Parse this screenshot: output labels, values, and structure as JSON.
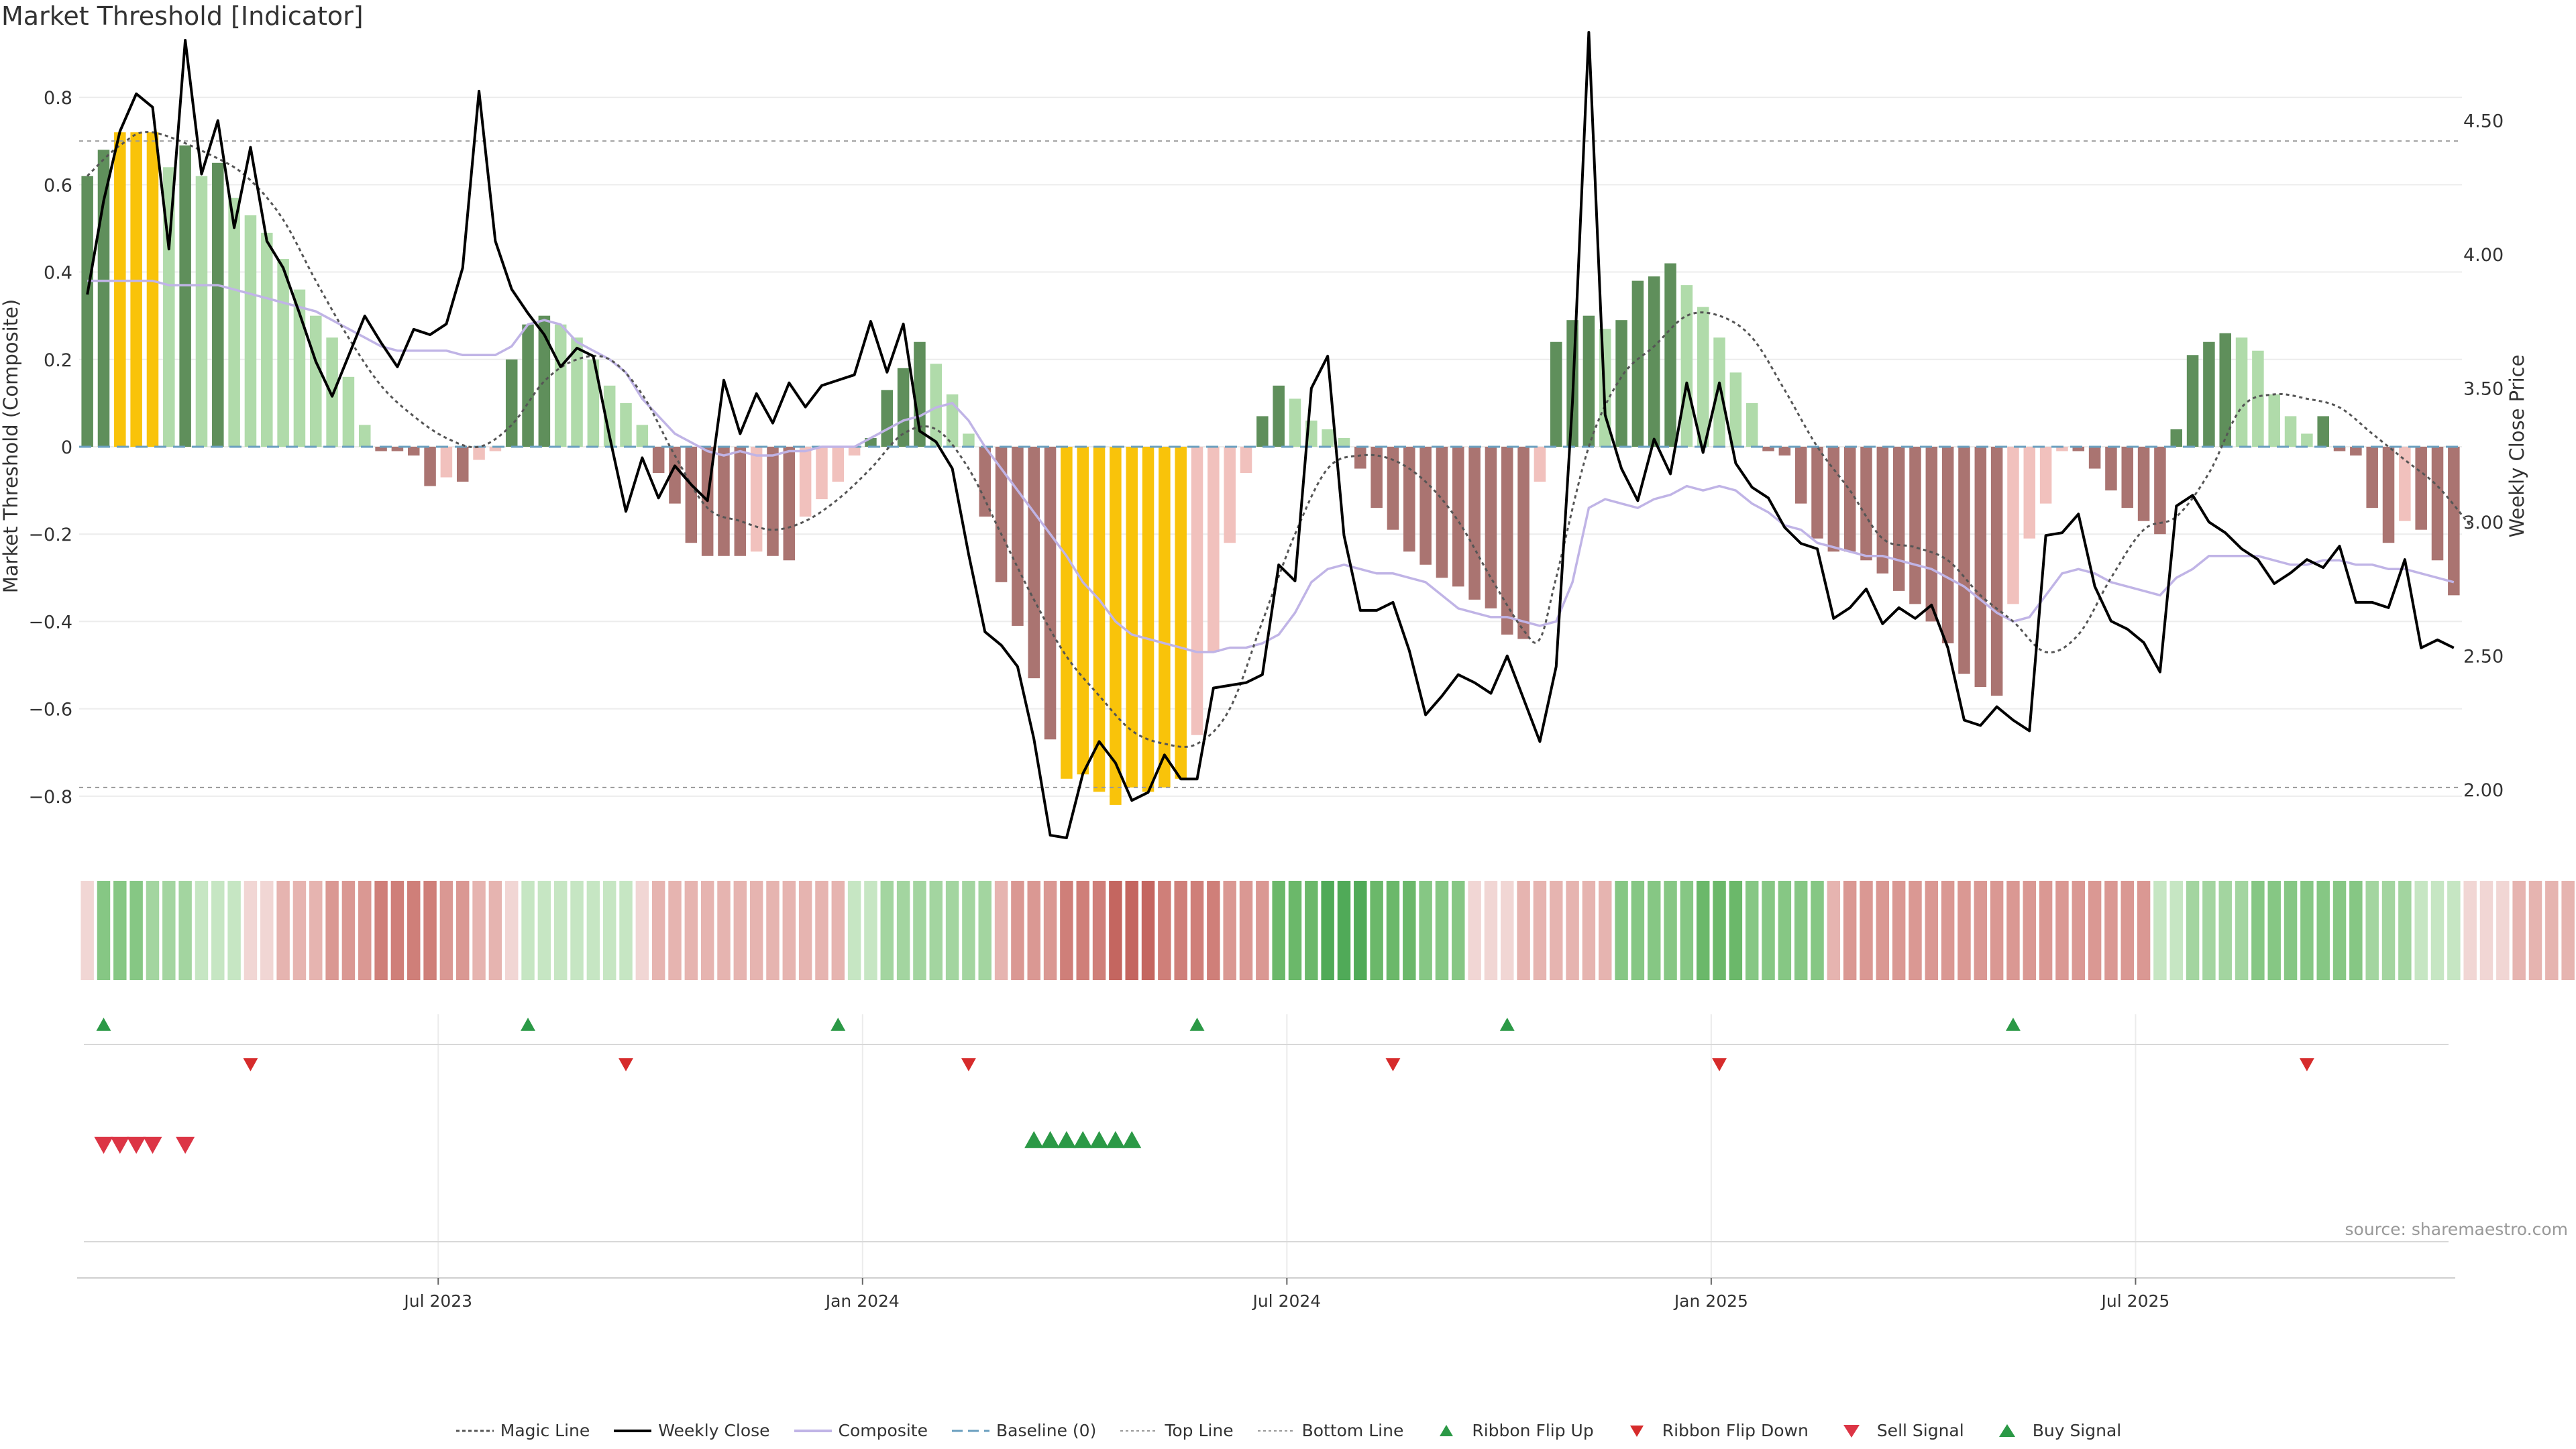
{
  "chart_data": {
    "type": "bar",
    "title": "Market Threshold [Indicator]",
    "ylabel_left": "Market Threshold (Composite)",
    "ylabel_right": "Weekly Close Price",
    "ylim_left": [
      -0.92,
      0.9
    ],
    "ylim_right": [
      1.78,
      4.75
    ],
    "yticks_left": [
      0.8,
      0.6,
      0.4,
      0.2,
      0,
      -0.2,
      -0.4,
      -0.6,
      -0.8
    ],
    "yticks_left_labels": [
      "0.8",
      "0.6",
      "0.4",
      "0.2",
      "0",
      "−0.2",
      "−0.4",
      "−0.6",
      "−0.8"
    ],
    "yticks_right": [
      4.5,
      4.0,
      3.5,
      3.0,
      2.5,
      2.0
    ],
    "yticks_right_labels": [
      "4.50",
      "4.00",
      "3.50",
      "3.00",
      "2.50",
      "2.00"
    ],
    "x_ticks": [
      "Jul 2023",
      "Jan 2024",
      "Jul 2024",
      "Jan 2025",
      "Jul 2025"
    ],
    "x_tick_positions": [
      22,
      48,
      74,
      100,
      126
    ],
    "top_line": 0.7,
    "bottom_line": -0.78,
    "baseline": 0,
    "composite": [
      0.62,
      0.68,
      0.72,
      0.72,
      0.72,
      0.64,
      0.69,
      0.62,
      0.65,
      0.57,
      0.53,
      0.49,
      0.43,
      0.36,
      0.3,
      0.25,
      0.16,
      0.05,
      -0.01,
      -0.01,
      -0.02,
      -0.09,
      -0.07,
      -0.08,
      -0.03,
      -0.01,
      0.2,
      0.28,
      0.3,
      0.28,
      0.25,
      0.2,
      0.14,
      0.1,
      0.05,
      -0.06,
      -0.13,
      -0.22,
      -0.25,
      -0.25,
      -0.25,
      -0.24,
      -0.25,
      -0.26,
      -0.16,
      -0.12,
      -0.08,
      -0.02,
      0.02,
      0.13,
      0.18,
      0.24,
      0.19,
      0.12,
      0.03,
      -0.16,
      -0.31,
      -0.41,
      -0.53,
      -0.67,
      -0.76,
      -0.75,
      -0.79,
      -0.82,
      -0.78,
      -0.79,
      -0.78,
      -0.76,
      -0.66,
      -0.47,
      -0.22,
      -0.06,
      0.07,
      0.14,
      0.11,
      0.06,
      0.04,
      0.02,
      -0.05,
      -0.14,
      -0.19,
      -0.24,
      -0.27,
      -0.3,
      -0.32,
      -0.35,
      -0.37,
      -0.43,
      -0.44,
      -0.08,
      0.24,
      0.29,
      0.3,
      0.27,
      0.29,
      0.38,
      0.39,
      0.42,
      0.37,
      0.32,
      0.25,
      0.17,
      0.1,
      -0.01,
      -0.02,
      -0.13,
      -0.21,
      -0.24,
      -0.24,
      -0.26,
      -0.29,
      -0.33,
      -0.36,
      -0.4,
      -0.45,
      -0.52,
      -0.55,
      -0.57,
      -0.36,
      -0.21,
      -0.13,
      -0.01,
      -0.01,
      -0.05,
      -0.1,
      -0.14,
      -0.17,
      -0.2,
      0.04,
      0.21,
      0.24,
      0.26,
      0.25,
      0.22,
      0.12,
      0.07,
      0.03,
      0.07,
      -0.01,
      -0.02,
      -0.14,
      -0.22,
      -0.17,
      -0.19,
      -0.26,
      -0.34
    ],
    "weekly_close": [
      3.85,
      4.2,
      4.46,
      4.6,
      4.55,
      4.02,
      4.8,
      4.3,
      4.5,
      4.1,
      4.4,
      4.05,
      3.95,
      3.78,
      3.6,
      3.47,
      3.62,
      3.77,
      3.67,
      3.58,
      3.72,
      3.7,
      3.74,
      3.95,
      4.61,
      4.05,
      3.87,
      3.78,
      3.7,
      3.58,
      3.65,
      3.62,
      3.32,
      3.04,
      3.24,
      3.09,
      3.21,
      3.14,
      3.08,
      3.53,
      3.33,
      3.48,
      3.37,
      3.52,
      3.43,
      3.51,
      3.53,
      3.55,
      3.75,
      3.56,
      3.74,
      3.34,
      3.3,
      3.2,
      2.88,
      2.59,
      2.54,
      2.46,
      2.19,
      1.83,
      1.82,
      2.06,
      2.18,
      2.1,
      1.96,
      1.99,
      2.13,
      2.04,
      2.04,
      2.38,
      2.39,
      2.4,
      2.43,
      2.84,
      2.78,
      3.5,
      3.62,
      2.95,
      2.67,
      2.67,
      2.7,
      2.52,
      2.28,
      2.35,
      2.43,
      2.4,
      2.36,
      2.5,
      2.34,
      2.18,
      2.46,
      3.45,
      4.83,
      3.4,
      3.2,
      3.08,
      3.31,
      3.18,
      3.52,
      3.26,
      3.52,
      3.22,
      3.13,
      3.09,
      2.98,
      2.92,
      2.9,
      2.64,
      2.68,
      2.75,
      2.62,
      2.68,
      2.64,
      2.69,
      2.53,
      2.26,
      2.24,
      2.31,
      2.26,
      2.22,
      2.95,
      2.96,
      3.03,
      2.76,
      2.63,
      2.6,
      2.55,
      2.44,
      3.06,
      3.1,
      3.0,
      2.96,
      2.9,
      2.86,
      2.77,
      2.81,
      2.86,
      2.83,
      2.91,
      2.7,
      2.7,
      2.68,
      2.86,
      2.53,
      2.56,
      2.53
    ],
    "composite_line": [
      0.38,
      0.38,
      0.38,
      0.38,
      0.38,
      0.37,
      0.37,
      0.37,
      0.37,
      0.36,
      0.35,
      0.34,
      0.33,
      0.32,
      0.31,
      0.29,
      0.27,
      0.25,
      0.23,
      0.22,
      0.22,
      0.22,
      0.22,
      0.21,
      0.21,
      0.21,
      0.23,
      0.28,
      0.29,
      0.28,
      0.24,
      0.22,
      0.2,
      0.17,
      0.11,
      0.07,
      0.03,
      0.01,
      -0.01,
      -0.02,
      -0.01,
      -0.02,
      -0.02,
      -0.01,
      -0.01,
      0.0,
      0.0,
      0.0,
      0.02,
      0.04,
      0.06,
      0.07,
      0.09,
      0.1,
      0.06,
      0.0,
      -0.05,
      -0.1,
      -0.15,
      -0.2,
      -0.25,
      -0.31,
      -0.35,
      -0.4,
      -0.43,
      -0.44,
      -0.45,
      -0.46,
      -0.47,
      -0.47,
      -0.46,
      -0.46,
      -0.45,
      -0.43,
      -0.38,
      -0.31,
      -0.28,
      -0.27,
      -0.28,
      -0.29,
      -0.29,
      -0.3,
      -0.31,
      -0.34,
      -0.37,
      -0.38,
      -0.39,
      -0.39,
      -0.4,
      -0.41,
      -0.4,
      -0.31,
      -0.14,
      -0.12,
      -0.13,
      -0.14,
      -0.12,
      -0.11,
      -0.09,
      -0.1,
      -0.09,
      -0.1,
      -0.13,
      -0.15,
      -0.18,
      -0.19,
      -0.22,
      -0.23,
      -0.24,
      -0.25,
      -0.25,
      -0.26,
      -0.27,
      -0.28,
      -0.3,
      -0.32,
      -0.35,
      -0.38,
      -0.4,
      -0.39,
      -0.34,
      -0.29,
      -0.28,
      -0.29,
      -0.31,
      -0.32,
      -0.33,
      -0.34,
      -0.3,
      -0.28,
      -0.25,
      -0.25,
      -0.25,
      -0.25,
      -0.26,
      -0.27,
      -0.27,
      -0.26,
      -0.26,
      -0.27,
      -0.27,
      -0.28,
      -0.28,
      -0.29,
      -0.3,
      -0.31
    ],
    "magic_line_points": [
      [
        0,
        0.62
      ],
      [
        2,
        0.69
      ],
      [
        4,
        0.72
      ],
      [
        8,
        0.66
      ],
      [
        10,
        0.61
      ],
      [
        12,
        0.52
      ],
      [
        14,
        0.38
      ],
      [
        16,
        0.25
      ],
      [
        18,
        0.14
      ],
      [
        20,
        0.07
      ],
      [
        22,
        0.02
      ],
      [
        24,
        0.0
      ],
      [
        26,
        0.05
      ],
      [
        28,
        0.15
      ],
      [
        30,
        0.2
      ],
      [
        32,
        0.2
      ],
      [
        34,
        0.12
      ],
      [
        36,
        -0.02
      ],
      [
        38,
        -0.14
      ],
      [
        40,
        -0.17
      ],
      [
        42,
        -0.19
      ],
      [
        44,
        -0.17
      ],
      [
        46,
        -0.12
      ],
      [
        48,
        -0.05
      ],
      [
        50,
        0.03
      ],
      [
        52,
        0.04
      ],
      [
        54,
        -0.05
      ],
      [
        56,
        -0.2
      ],
      [
        58,
        -0.35
      ],
      [
        60,
        -0.48
      ],
      [
        62,
        -0.57
      ],
      [
        64,
        -0.65
      ],
      [
        66,
        -0.68
      ],
      [
        68,
        -0.68
      ],
      [
        70,
        -0.6
      ],
      [
        72,
        -0.4
      ],
      [
        74,
        -0.2
      ],
      [
        76,
        -0.05
      ],
      [
        78,
        -0.02
      ],
      [
        80,
        -0.03
      ],
      [
        82,
        -0.08
      ],
      [
        84,
        -0.17
      ],
      [
        86,
        -0.3
      ],
      [
        88,
        -0.42
      ],
      [
        89,
        -0.44
      ],
      [
        90,
        -0.3
      ],
      [
        92,
        0.0
      ],
      [
        94,
        0.16
      ],
      [
        96,
        0.23
      ],
      [
        98,
        0.3
      ],
      [
        100,
        0.3
      ],
      [
        102,
        0.25
      ],
      [
        104,
        0.13
      ],
      [
        106,
        0.0
      ],
      [
        108,
        -0.1
      ],
      [
        110,
        -0.21
      ],
      [
        112,
        -0.23
      ],
      [
        114,
        -0.26
      ],
      [
        116,
        -0.34
      ],
      [
        118,
        -0.4
      ],
      [
        120,
        -0.47
      ],
      [
        122,
        -0.43
      ],
      [
        124,
        -0.3
      ],
      [
        126,
        -0.19
      ],
      [
        128,
        -0.16
      ],
      [
        130,
        -0.06
      ],
      [
        132,
        0.09
      ],
      [
        134,
        0.12
      ],
      [
        136,
        0.11
      ],
      [
        138,
        0.09
      ],
      [
        140,
        0.03
      ],
      [
        142,
        -0.03
      ],
      [
        144,
        -0.09
      ],
      [
        146,
        -0.18
      ]
    ],
    "ribbon_levels": [
      -1,
      3,
      3,
      3,
      2,
      2,
      2,
      1,
      1,
      1,
      -1,
      -1,
      -2,
      -2,
      -2,
      -3,
      -3,
      -3,
      -4,
      -4,
      -4,
      -4,
      -3,
      -3,
      -2,
      -2,
      -1,
      1,
      1,
      1,
      1,
      1,
      1,
      1,
      -1,
      -2,
      -2,
      -2,
      -2,
      -2,
      -2,
      -2,
      -2,
      -2,
      -2,
      -2,
      -2,
      1,
      1,
      2,
      2,
      2,
      2,
      2,
      2,
      2,
      -2,
      -3,
      -3,
      -3,
      -4,
      -4,
      -4,
      -5,
      -5,
      -5,
      -4,
      -4,
      -4,
      -4,
      -3,
      -3,
      -3,
      4,
      4,
      4,
      5,
      5,
      5,
      4,
      4,
      4,
      3,
      3,
      3,
      -1,
      -1,
      -1,
      -2,
      -2,
      -2,
      -2,
      -2,
      -2,
      3,
      3,
      3,
      3,
      3,
      4,
      4,
      4,
      3,
      3,
      3,
      3,
      3,
      -2,
      -3,
      -3,
      -3,
      -3,
      -3,
      -3,
      -3,
      -3,
      -3,
      -3,
      -3,
      -3,
      -3,
      -3,
      -3,
      -3,
      -3,
      -3,
      -3,
      1,
      1,
      2,
      2,
      2,
      2,
      3,
      3,
      3,
      3,
      3,
      3,
      3,
      2,
      2,
      2,
      1,
      1,
      1,
      -1,
      -1,
      -1,
      -2,
      -2,
      -2,
      -2,
      -2
    ],
    "ribbon_flip_up": [
      1,
      27,
      46,
      68,
      87,
      118
    ],
    "ribbon_flip_down": [
      10,
      33,
      54,
      80,
      100,
      136
    ],
    "sell_signal": [
      1,
      2,
      3,
      4,
      6
    ],
    "buy_signal": [
      58,
      59,
      60,
      61,
      62,
      63,
      64
    ]
  },
  "legend": [
    {
      "label": "Magic Line"
    },
    {
      "label": "Weekly Close"
    },
    {
      "label": "Composite"
    },
    {
      "label": "Baseline (0)"
    },
    {
      "label": "Top Line"
    },
    {
      "label": "Bottom Line"
    },
    {
      "label": "Ribbon Flip Up"
    },
    {
      "label": "Ribbon Flip Down"
    },
    {
      "label": "Sell Signal"
    },
    {
      "label": "Buy Signal"
    }
  ],
  "source_note": "source: sharemaestro.com",
  "colors": {
    "yellow": "#f9c30a",
    "green_light": "#b0dbaa",
    "green_dark": "#5f8f5b",
    "red_light": "#f1c1bd",
    "red_dark": "#aa7471",
    "magic_line": "#555555",
    "weekly_close": "#000000",
    "composite_line": "#c0b4e6",
    "baseline": "#6a9fbf",
    "ref_line": "#999999",
    "flip_up": "#2b9946",
    "flip_down": "#d62b2b",
    "sell": "#dc3545",
    "buy": "#2b9946"
  }
}
